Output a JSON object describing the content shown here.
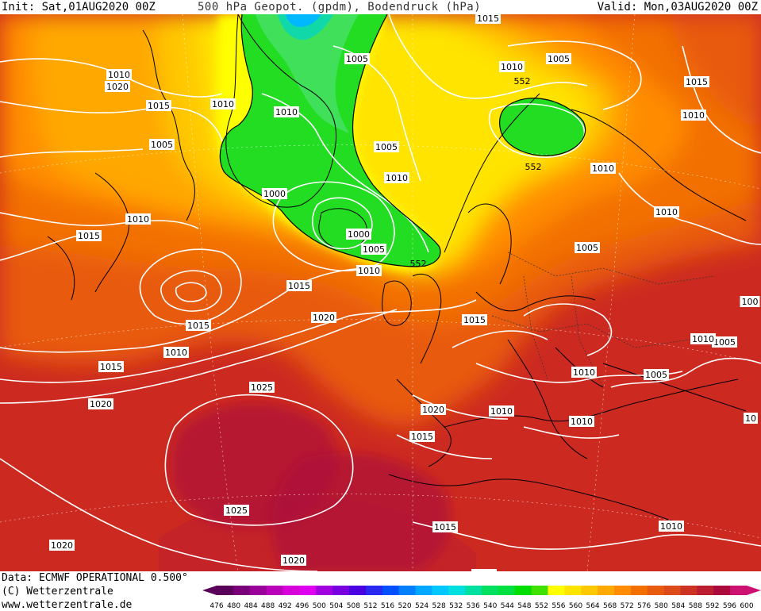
{
  "header": {
    "init": "Init: Sat,01AUG2020 00Z",
    "title": "500 hPa Geopot. (gpdm), Bodendruck (hPa)",
    "valid": "Valid: Mon,03AUG2020 00Z"
  },
  "footer": {
    "data_source": "Data: ECMWF OPERATIONAL 0.500°",
    "copyright": "(C) Wetterzentrale",
    "website": "www.wetterzentrale.de"
  },
  "colorbar": {
    "ticks": [
      "476",
      "480",
      "484",
      "488",
      "492",
      "496",
      "500",
      "504",
      "508",
      "512",
      "516",
      "520",
      "524",
      "528",
      "532",
      "536",
      "540",
      "544",
      "548",
      "552",
      "556",
      "560",
      "564",
      "568",
      "572",
      "576",
      "580",
      "584",
      "588",
      "592",
      "596",
      "600"
    ],
    "colors": [
      "#5a005a",
      "#7a007a",
      "#9a009a",
      "#b800b8",
      "#d800d8",
      "#e000f0",
      "#a000e0",
      "#7800e0",
      "#4800e0",
      "#2828f0",
      "#0050ff",
      "#0080ff",
      "#00a8ff",
      "#00c8ff",
      "#00e0e0",
      "#00e0a0",
      "#00e060",
      "#00e040",
      "#00dd00",
      "#40e000",
      "#ffff00",
      "#ffe400",
      "#ffc800",
      "#ffa800",
      "#ff8c00",
      "#f27000",
      "#e85a10",
      "#dd4a1a",
      "#cc3322",
      "#bb1e30",
      "#aa0a3c",
      "#cc1170"
    ]
  },
  "isobar_labels": [
    {
      "text": "1015"
    },
    {
      "text": "1005"
    },
    {
      "text": "1005"
    },
    {
      "text": "1010"
    },
    {
      "text": "1015"
    },
    {
      "text": "1010"
    },
    {
      "text": "1020"
    },
    {
      "text": "1015"
    },
    {
      "text": "1010"
    },
    {
      "text": "1010"
    },
    {
      "text": "1010"
    },
    {
      "text": "1005"
    },
    {
      "text": "1005"
    },
    {
      "text": "1010"
    },
    {
      "text": "1010"
    },
    {
      "text": "1000"
    },
    {
      "text": "1010"
    },
    {
      "text": "1015"
    },
    {
      "text": "1005"
    },
    {
      "text": "1010"
    },
    {
      "text": "1000"
    },
    {
      "text": "1005"
    },
    {
      "text": "1015"
    },
    {
      "text": "1020"
    },
    {
      "text": "1015"
    },
    {
      "text": "1015"
    },
    {
      "text": "100"
    },
    {
      "text": "1010"
    },
    {
      "text": "1005"
    },
    {
      "text": "1010"
    },
    {
      "text": "1005"
    },
    {
      "text": "1020"
    },
    {
      "text": "1025"
    },
    {
      "text": "1020"
    },
    {
      "text": "1010"
    },
    {
      "text": "1015"
    },
    {
      "text": "1010"
    },
    {
      "text": "10"
    },
    {
      "text": "1025"
    },
    {
      "text": "1015"
    },
    {
      "text": "1010"
    },
    {
      "text": "1020"
    },
    {
      "text": "1020"
    },
    {
      "text": "1015"
    },
    {
      "text": "1010"
    },
    {
      "text": "1015"
    },
    {
      "text": "1010"
    }
  ],
  "geopotential_labels": [
    {
      "text": "552"
    },
    {
      "text": "552"
    },
    {
      "text": "552"
    }
  ]
}
